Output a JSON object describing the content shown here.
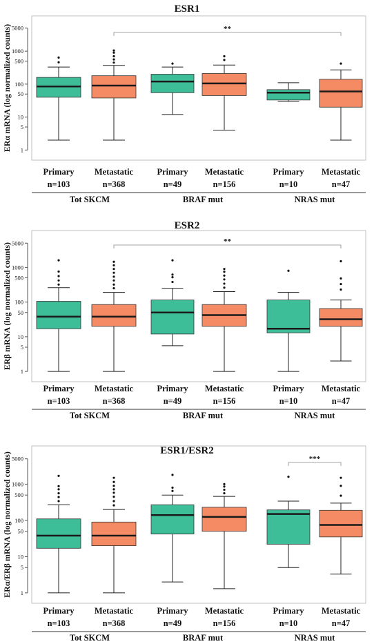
{
  "colors": {
    "primary": "#3dbd98",
    "metastatic": "#f58b65",
    "median": "#1a1a1a",
    "frame": "#bfbfbf",
    "text": "#111111"
  },
  "y_ticks": [
    "1",
    "5",
    "10",
    "50",
    "100",
    "500",
    "1000",
    "5000"
  ],
  "group_labels": [
    "Tot SKCM",
    "BRAF mut",
    "NRAS mut"
  ],
  "chart_data": [
    {
      "type": "box",
      "title": "ESR1",
      "ylabel": "ERα mRNA (log normalized counts)",
      "yscale": "log",
      "ylim": [
        0.8,
        8000
      ],
      "grid": false,
      "boxes": [
        {
          "name": "Primary",
          "n": "n=103",
          "group": "Tot SKCM",
          "color": "primary",
          "whislo": 2,
          "q1": 40,
          "med": 85,
          "q3": 160,
          "whishi": 330,
          "fliers": [
            460,
            640
          ]
        },
        {
          "name": "Metastatic",
          "n": "n=368",
          "group": "Tot SKCM",
          "color": "metastatic",
          "whislo": 2,
          "q1": 38,
          "med": 90,
          "q3": 180,
          "whishi": 370,
          "fliers": [
            450,
            560,
            700,
            900,
            1050
          ]
        },
        {
          "name": "Primary",
          "n": "n=49",
          "group": "BRAF mut",
          "color": "primary",
          "whislo": 12,
          "q1": 55,
          "med": 120,
          "q3": 200,
          "whishi": 330,
          "fliers": [
            420
          ]
        },
        {
          "name": "Metastatic",
          "n": "n=156",
          "group": "BRAF mut",
          "color": "metastatic",
          "whislo": 4,
          "q1": 45,
          "med": 105,
          "q3": 210,
          "whishi": 380,
          "fliers": [
            540,
            700
          ]
        },
        {
          "name": "Primary",
          "n": "n=10",
          "group": "NRAS mut",
          "color": "primary",
          "whislo": 30,
          "q1": 33,
          "med": 55,
          "q3": 68,
          "whishi": 110,
          "fliers": []
        },
        {
          "name": "Metastatic",
          "n": "n=47",
          "group": "NRAS mut",
          "color": "metastatic",
          "whislo": 2,
          "q1": 20,
          "med": 60,
          "q3": 140,
          "whishi": 270,
          "fliers": [
            420
          ]
        }
      ],
      "annotations": [
        {
          "text": "**",
          "from": 1,
          "to": 5
        }
      ]
    },
    {
      "type": "box",
      "title": "ESR2",
      "ylabel": "ERβ mRNA (log normalized counts)",
      "yscale": "log",
      "ylim": [
        0.8,
        8000
      ],
      "grid": false,
      "boxes": [
        {
          "name": "Primary",
          "n": "n=103",
          "group": "Tot SKCM",
          "color": "primary",
          "whislo": 1,
          "q1": 17,
          "med": 38,
          "q3": 105,
          "whishi": 260,
          "fliers": [
            320,
            420,
            560,
            760,
            1600
          ]
        },
        {
          "name": "Metastatic",
          "n": "n=368",
          "group": "Tot SKCM",
          "color": "metastatic",
          "whislo": 1,
          "q1": 20,
          "med": 38,
          "q3": 85,
          "whishi": 190,
          "fliers": [
            250,
            320,
            420,
            540,
            700,
            900,
            1150,
            1450
          ]
        },
        {
          "name": "Primary",
          "n": "n=49",
          "group": "BRAF mut",
          "color": "primary",
          "whislo": 5.5,
          "q1": 12,
          "med": 50,
          "q3": 115,
          "whishi": 250,
          "fliers": [
            380,
            520,
            620,
            1600
          ]
        },
        {
          "name": "Metastatic",
          "n": "n=156",
          "group": "BRAF mut",
          "color": "metastatic",
          "whislo": 1,
          "q1": 20,
          "med": 42,
          "q3": 85,
          "whishi": 200,
          "fliers": [
            260,
            340,
            450,
            580,
            750,
            900
          ]
        },
        {
          "name": "Primary",
          "n": "n=10",
          "group": "NRAS mut",
          "color": "primary",
          "whislo": 1,
          "q1": 13,
          "med": 17,
          "q3": 115,
          "whishi": 190,
          "fliers": [
            800
          ]
        },
        {
          "name": "Metastatic",
          "n": "n=47",
          "group": "NRAS mut",
          "color": "metastatic",
          "whislo": 2,
          "q1": 20,
          "med": 32,
          "q3": 65,
          "whishi": 115,
          "fliers": [
            230,
            330,
            480,
            1500
          ]
        }
      ],
      "annotations": [
        {
          "text": "**",
          "from": 1,
          "to": 5
        }
      ]
    },
    {
      "type": "box",
      "title": "ESR1/ESR2",
      "ylabel": "ERα/ERβ mRNA (log normalized counts)",
      "yscale": "log",
      "ylim": [
        0.8,
        8000
      ],
      "grid": false,
      "boxes": [
        {
          "name": "Primary",
          "n": "n=103",
          "group": "Tot SKCM",
          "color": "primary",
          "whislo": 1,
          "q1": 17,
          "med": 38,
          "q3": 110,
          "whishi": 270,
          "fliers": [
            340,
            440,
            560,
            720,
            880,
            1700
          ]
        },
        {
          "name": "Metastatic",
          "n": "n=368",
          "group": "Tot SKCM",
          "color": "metastatic",
          "whislo": 1,
          "q1": 20,
          "med": 38,
          "q3": 90,
          "whishi": 200,
          "fliers": [
            260,
            340,
            450,
            580,
            720,
            900,
            1150,
            1500
          ]
        },
        {
          "name": "Primary",
          "n": "n=49",
          "group": "BRAF mut",
          "color": "primary",
          "whislo": 2,
          "q1": 42,
          "med": 140,
          "q3": 270,
          "whishi": 500,
          "fliers": [
            650,
            800,
            1800
          ]
        },
        {
          "name": "Metastatic",
          "n": "n=156",
          "group": "BRAF mut",
          "color": "metastatic",
          "whislo": 1.3,
          "q1": 50,
          "med": 125,
          "q3": 230,
          "whishi": 460,
          "fliers": [
            560,
            700,
            860,
            1000
          ]
        },
        {
          "name": "Primary",
          "n": "n=10",
          "group": "NRAS mut",
          "color": "primary",
          "whislo": 5,
          "q1": 22,
          "med": 150,
          "q3": 195,
          "whishi": 340,
          "fliers": [
            1600
          ]
        },
        {
          "name": "Metastatic",
          "n": "n=47",
          "group": "NRAS mut",
          "color": "metastatic",
          "whislo": 3.3,
          "q1": 35,
          "med": 75,
          "q3": 190,
          "whishi": 300,
          "fliers": [
            480,
            900,
            1500
          ]
        }
      ],
      "annotations": [
        {
          "text": "***",
          "from": 4,
          "to": 5
        }
      ]
    }
  ]
}
